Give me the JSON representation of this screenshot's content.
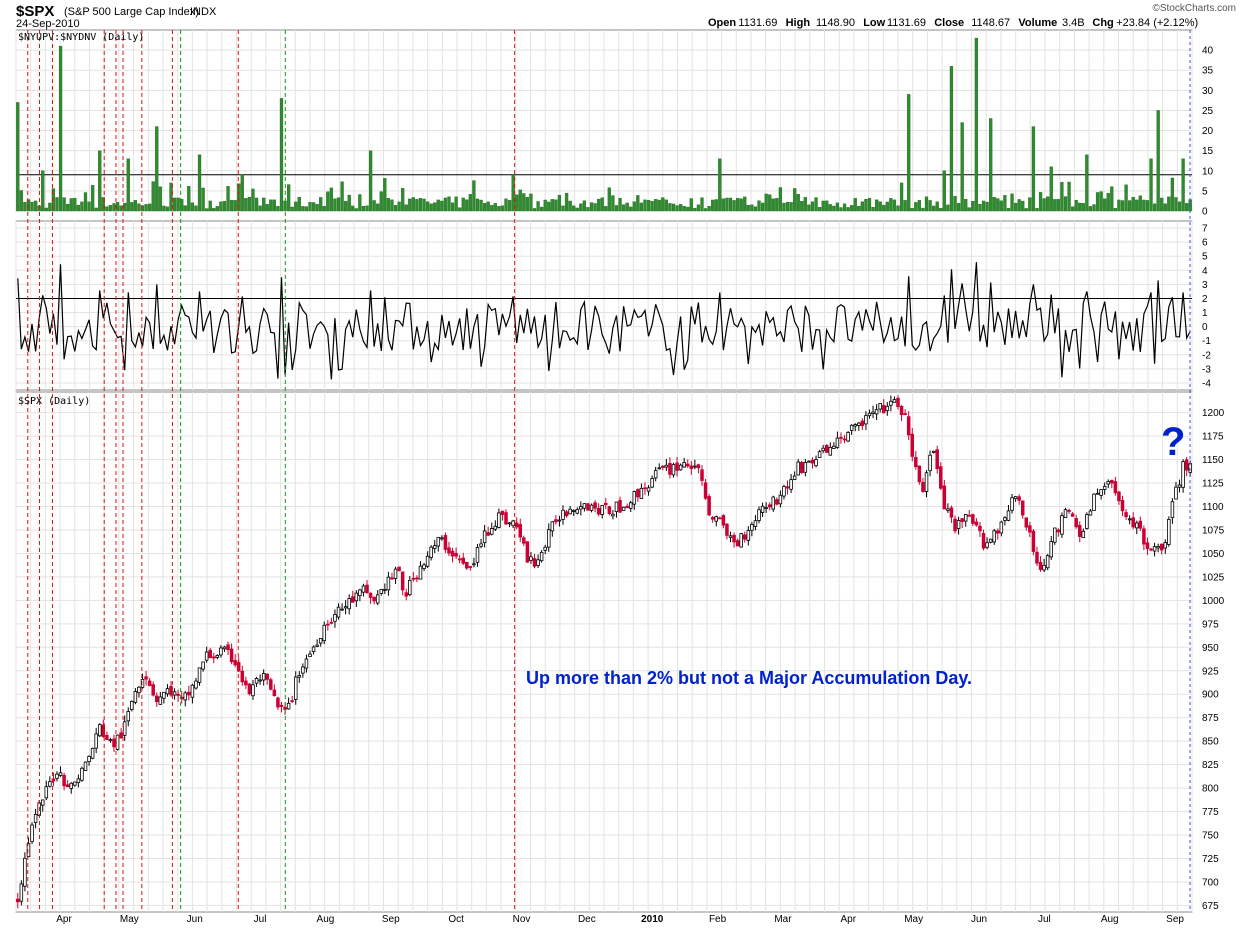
{
  "header": {
    "symbol": "$SPX",
    "name": "(S&P 500 Large Cap Index)",
    "exchange": "INDX",
    "date": "24-Sep-2010",
    "credit": "©StockCharts.com",
    "quote": [
      {
        "label": "Open",
        "value": "1131.69"
      },
      {
        "label": "High",
        "value": "1148.90"
      },
      {
        "label": "Low",
        "value": "1131.69"
      },
      {
        "label": "Close",
        "value": "1148.67"
      },
      {
        "label": "Volume",
        "value": "3.4B"
      },
      {
        "label": "Chg",
        "value": "+23.84 (+2.12%)"
      }
    ]
  },
  "chart_data": {
    "type": "line",
    "months": [
      "Apr",
      "May",
      "Jun",
      "Jul",
      "Aug",
      "Sep",
      "Oct",
      "Nov",
      "Dec",
      "2010",
      "Feb",
      "Mar",
      "Apr",
      "May",
      "Jun",
      "Jul",
      "Aug",
      "Sep"
    ],
    "panels": [
      {
        "id": "breadth_bars",
        "title": "$NYUPV:$NYDNV (Daily)",
        "type": "bar",
        "y_ticks": [
          0,
          5,
          10,
          15,
          20,
          25,
          30,
          35,
          40
        ],
        "ylim": [
          0,
          45
        ],
        "reference_line": 9,
        "bar_color": "#2e8b2e",
        "spikes": [
          {
            "x": 0.0,
            "y": 27
          },
          {
            "x": 0.02,
            "y": 10
          },
          {
            "x": 0.035,
            "y": 41
          },
          {
            "x": 0.07,
            "y": 15
          },
          {
            "x": 0.095,
            "y": 13
          },
          {
            "x": 0.12,
            "y": 21
          },
          {
            "x": 0.155,
            "y": 14
          },
          {
            "x": 0.193,
            "y": 9
          },
          {
            "x": 0.225,
            "y": 28
          },
          {
            "x": 0.3,
            "y": 15
          },
          {
            "x": 0.423,
            "y": 9
          },
          {
            "x": 0.6,
            "y": 13
          },
          {
            "x": 0.76,
            "y": 29
          },
          {
            "x": 0.79,
            "y": 10
          },
          {
            "x": 0.797,
            "y": 36
          },
          {
            "x": 0.806,
            "y": 22
          },
          {
            "x": 0.818,
            "y": 43
          },
          {
            "x": 0.83,
            "y": 23
          },
          {
            "x": 0.865,
            "y": 21
          },
          {
            "x": 0.882,
            "y": 11
          },
          {
            "x": 0.912,
            "y": 14
          },
          {
            "x": 0.966,
            "y": 13
          },
          {
            "x": 0.972,
            "y": 25
          },
          {
            "x": 0.995,
            "y": 13
          }
        ]
      },
      {
        "id": "breadth_line",
        "title": "",
        "type": "line",
        "y_ticks": [
          -4,
          -3,
          -2,
          -1,
          0,
          1,
          2,
          3,
          4,
          5,
          6,
          7
        ],
        "ylim": [
          -4.5,
          7.5
        ],
        "reference_line": 2,
        "color": "#000000"
      },
      {
        "id": "spx",
        "title": "$SPX (Daily)",
        "type": "candlestick",
        "y_ticks": [
          675,
          700,
          725,
          750,
          775,
          800,
          825,
          850,
          875,
          900,
          925,
          950,
          975,
          1000,
          1025,
          1050,
          1075,
          1100,
          1125,
          1150,
          1175,
          1200
        ],
        "ylim": [
          668,
          1222
        ],
        "up_color": "#000000",
        "down_color": "#cc0033",
        "keypoints": [
          {
            "x": 0.0,
            "y": 683
          },
          {
            "x": 0.01,
            "y": 750
          },
          {
            "x": 0.02,
            "y": 785
          },
          {
            "x": 0.033,
            "y": 820
          },
          {
            "x": 0.045,
            "y": 800
          },
          {
            "x": 0.06,
            "y": 830
          },
          {
            "x": 0.07,
            "y": 865
          },
          {
            "x": 0.08,
            "y": 845
          },
          {
            "x": 0.09,
            "y": 860
          },
          {
            "x": 0.1,
            "y": 905
          },
          {
            "x": 0.108,
            "y": 925
          },
          {
            "x": 0.118,
            "y": 895
          },
          {
            "x": 0.13,
            "y": 905
          },
          {
            "x": 0.14,
            "y": 890
          },
          {
            "x": 0.15,
            "y": 910
          },
          {
            "x": 0.16,
            "y": 940
          },
          {
            "x": 0.175,
            "y": 945
          },
          {
            "x": 0.186,
            "y": 935
          },
          {
            "x": 0.196,
            "y": 900
          },
          {
            "x": 0.208,
            "y": 920
          },
          {
            "x": 0.215,
            "y": 905
          },
          {
            "x": 0.222,
            "y": 885
          },
          {
            "x": 0.23,
            "y": 880
          },
          {
            "x": 0.24,
            "y": 925
          },
          {
            "x": 0.25,
            "y": 945
          },
          {
            "x": 0.262,
            "y": 975
          },
          {
            "x": 0.28,
            "y": 995
          },
          {
            "x": 0.295,
            "y": 1010
          },
          {
            "x": 0.305,
            "y": 1000
          },
          {
            "x": 0.315,
            "y": 1020
          },
          {
            "x": 0.325,
            "y": 1030
          },
          {
            "x": 0.33,
            "y": 1005
          },
          {
            "x": 0.345,
            "y": 1040
          },
          {
            "x": 0.36,
            "y": 1065
          },
          {
            "x": 0.375,
            "y": 1045
          },
          {
            "x": 0.385,
            "y": 1030
          },
          {
            "x": 0.398,
            "y": 1070
          },
          {
            "x": 0.41,
            "y": 1090
          },
          {
            "x": 0.425,
            "y": 1080
          },
          {
            "x": 0.436,
            "y": 1040
          },
          {
            "x": 0.445,
            "y": 1045
          },
          {
            "x": 0.46,
            "y": 1090
          },
          {
            "x": 0.48,
            "y": 1105
          },
          {
            "x": 0.5,
            "y": 1095
          },
          {
            "x": 0.515,
            "y": 1100
          },
          {
            "x": 0.53,
            "y": 1115
          },
          {
            "x": 0.545,
            "y": 1135
          },
          {
            "x": 0.565,
            "y": 1145
          },
          {
            "x": 0.578,
            "y": 1145
          },
          {
            "x": 0.59,
            "y": 1095
          },
          {
            "x": 0.6,
            "y": 1080
          },
          {
            "x": 0.612,
            "y": 1060
          },
          {
            "x": 0.622,
            "y": 1075
          },
          {
            "x": 0.635,
            "y": 1100
          },
          {
            "x": 0.65,
            "y": 1110
          },
          {
            "x": 0.665,
            "y": 1140
          },
          {
            "x": 0.685,
            "y": 1155
          },
          {
            "x": 0.705,
            "y": 1175
          },
          {
            "x": 0.725,
            "y": 1195
          },
          {
            "x": 0.745,
            "y": 1210
          },
          {
            "x": 0.757,
            "y": 1200
          },
          {
            "x": 0.762,
            "y": 1150
          },
          {
            "x": 0.772,
            "y": 1120
          },
          {
            "x": 0.78,
            "y": 1165
          },
          {
            "x": 0.79,
            "y": 1100
          },
          {
            "x": 0.8,
            "y": 1075
          },
          {
            "x": 0.81,
            "y": 1090
          },
          {
            "x": 0.825,
            "y": 1060
          },
          {
            "x": 0.838,
            "y": 1080
          },
          {
            "x": 0.85,
            "y": 1115
          },
          {
            "x": 0.86,
            "y": 1080
          },
          {
            "x": 0.872,
            "y": 1030
          },
          {
            "x": 0.88,
            "y": 1060
          },
          {
            "x": 0.895,
            "y": 1095
          },
          {
            "x": 0.908,
            "y": 1070
          },
          {
            "x": 0.918,
            "y": 1110
          },
          {
            "x": 0.932,
            "y": 1125
          },
          {
            "x": 0.942,
            "y": 1100
          },
          {
            "x": 0.955,
            "y": 1075
          },
          {
            "x": 0.965,
            "y": 1060
          },
          {
            "x": 0.975,
            "y": 1050
          },
          {
            "x": 0.985,
            "y": 1100
          },
          {
            "x": 0.993,
            "y": 1140
          },
          {
            "x": 1.0,
            "y": 1148
          }
        ]
      }
    ],
    "vertical_markers": [
      {
        "x": 0.01,
        "color": "red"
      },
      {
        "x": 0.02,
        "color": "red"
      },
      {
        "x": 0.031,
        "color": "red"
      },
      {
        "x": 0.075,
        "color": "red"
      },
      {
        "x": 0.085,
        "color": "red"
      },
      {
        "x": 0.091,
        "color": "red"
      },
      {
        "x": 0.107,
        "color": "red"
      },
      {
        "x": 0.133,
        "color": "red"
      },
      {
        "x": 0.14,
        "color": "green"
      },
      {
        "x": 0.189,
        "color": "red"
      },
      {
        "x": 0.229,
        "color": "green"
      },
      {
        "x": 0.424,
        "color": "red"
      }
    ],
    "annotation": "Up more than 2% but not a Major Accumulation Day.",
    "question_mark": "?",
    "grid": true
  }
}
